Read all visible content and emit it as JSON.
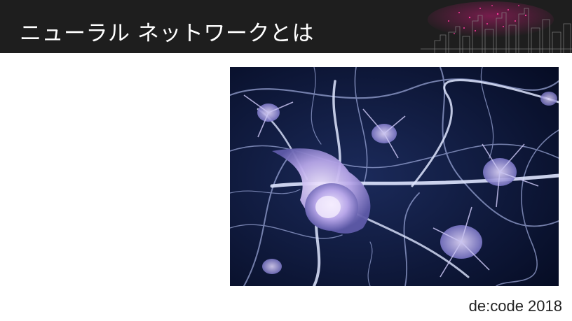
{
  "slide": {
    "title": "ニューラル ネットワークとは",
    "footer": "de:code 2018"
  },
  "colors": {
    "header_bg": "#1e1e1e",
    "accent_magenta": "#d11b7c",
    "image_bg": "#0a1330"
  },
  "image": {
    "subject": "neuron-network-illustration"
  }
}
